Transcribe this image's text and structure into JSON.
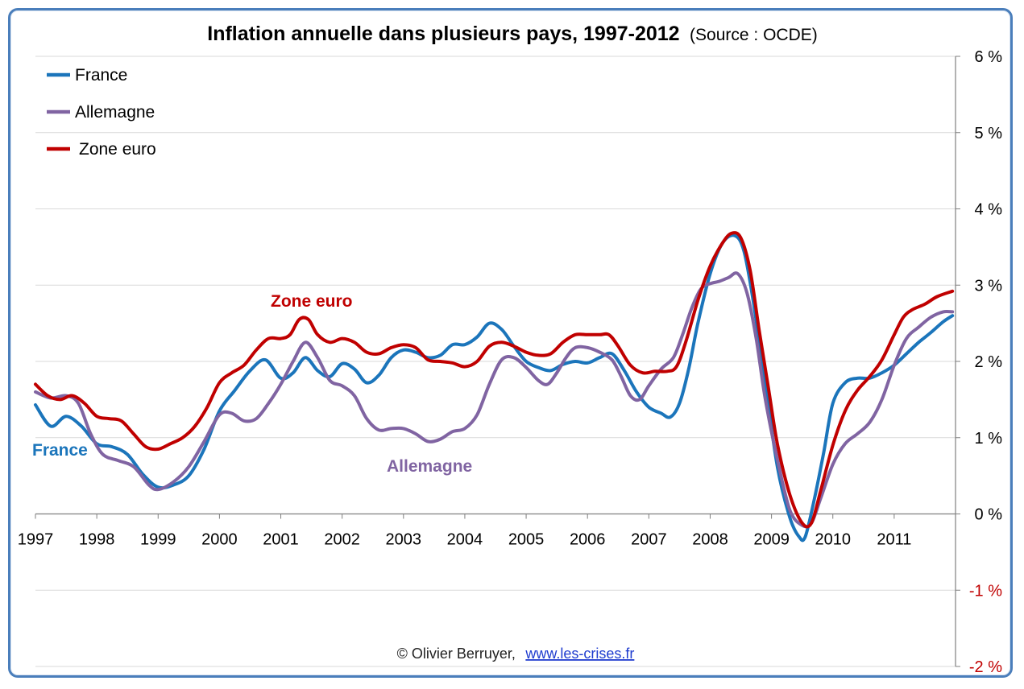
{
  "chart_data": {
    "type": "line",
    "title": "Inflation annuelle dans plusieurs pays, 1997-2012",
    "subtitle": "(Source : OCDE)",
    "xlabel": "",
    "ylabel": "",
    "x_ticks": [
      "1997",
      "1998",
      "1999",
      "2000",
      "2001",
      "2002",
      "2003",
      "2004",
      "2005",
      "2006",
      "2007",
      "2008",
      "2009",
      "2010",
      "2011"
    ],
    "y_ticks": [
      {
        "value": 6,
        "label": "6 %"
      },
      {
        "value": 5,
        "label": "5 %"
      },
      {
        "value": 4,
        "label": "4 %"
      },
      {
        "value": 3,
        "label": "3 %"
      },
      {
        "value": 2,
        "label": "2 %"
      },
      {
        "value": 1,
        "label": "1 %"
      },
      {
        "value": 0,
        "label": "0 %"
      },
      {
        "value": -1,
        "label": "-1 %"
      },
      {
        "value": -2,
        "label": "-2 %"
      }
    ],
    "xlim": [
      1997,
      2012
    ],
    "ylim": [
      -2,
      6
    ],
    "grid": true,
    "legend_position": "top-left",
    "series": [
      {
        "name": "France",
        "color": "#1f77b4",
        "stroke": "#1b75bb",
        "annotation": "France",
        "points": [
          [
            1997.0,
            1.43
          ],
          [
            1997.25,
            1.15
          ],
          [
            1997.5,
            1.28
          ],
          [
            1997.75,
            1.15
          ],
          [
            1998.0,
            0.92
          ],
          [
            1998.25,
            0.88
          ],
          [
            1998.5,
            0.78
          ],
          [
            1998.75,
            0.52
          ],
          [
            1999.0,
            0.35
          ],
          [
            1999.25,
            0.38
          ],
          [
            1999.5,
            0.5
          ],
          [
            1999.75,
            0.85
          ],
          [
            2000.0,
            1.35
          ],
          [
            2000.25,
            1.62
          ],
          [
            2000.5,
            1.88
          ],
          [
            2000.75,
            2.02
          ],
          [
            2001.0,
            1.78
          ],
          [
            2001.2,
            1.85
          ],
          [
            2001.4,
            2.05
          ],
          [
            2001.6,
            1.88
          ],
          [
            2001.8,
            1.8
          ],
          [
            2002.0,
            1.97
          ],
          [
            2002.2,
            1.9
          ],
          [
            2002.4,
            1.72
          ],
          [
            2002.6,
            1.82
          ],
          [
            2002.8,
            2.05
          ],
          [
            2003.0,
            2.15
          ],
          [
            2003.2,
            2.12
          ],
          [
            2003.4,
            2.05
          ],
          [
            2003.6,
            2.08
          ],
          [
            2003.8,
            2.22
          ],
          [
            2004.0,
            2.22
          ],
          [
            2004.2,
            2.32
          ],
          [
            2004.4,
            2.5
          ],
          [
            2004.6,
            2.42
          ],
          [
            2004.8,
            2.2
          ],
          [
            2005.0,
            2.0
          ],
          [
            2005.2,
            1.92
          ],
          [
            2005.4,
            1.88
          ],
          [
            2005.6,
            1.96
          ],
          [
            2005.8,
            2.0
          ],
          [
            2006.0,
            1.98
          ],
          [
            2006.2,
            2.05
          ],
          [
            2006.4,
            2.1
          ],
          [
            2006.6,
            1.88
          ],
          [
            2006.8,
            1.6
          ],
          [
            2007.0,
            1.4
          ],
          [
            2007.2,
            1.32
          ],
          [
            2007.35,
            1.27
          ],
          [
            2007.5,
            1.45
          ],
          [
            2007.65,
            1.9
          ],
          [
            2007.8,
            2.5
          ],
          [
            2008.0,
            3.15
          ],
          [
            2008.2,
            3.55
          ],
          [
            2008.4,
            3.65
          ],
          [
            2008.55,
            3.45
          ],
          [
            2008.7,
            2.8
          ],
          [
            2008.9,
            1.7
          ],
          [
            2009.1,
            0.6
          ],
          [
            2009.3,
            -0.05
          ],
          [
            2009.45,
            -0.3
          ],
          [
            2009.55,
            -0.3
          ],
          [
            2009.7,
            0.2
          ],
          [
            2009.85,
            0.8
          ],
          [
            2010.0,
            1.45
          ],
          [
            2010.2,
            1.72
          ],
          [
            2010.4,
            1.78
          ],
          [
            2010.6,
            1.78
          ],
          [
            2010.8,
            1.85
          ],
          [
            2011.0,
            1.95
          ],
          [
            2011.2,
            2.1
          ],
          [
            2011.4,
            2.25
          ],
          [
            2011.6,
            2.38
          ],
          [
            2011.8,
            2.52
          ],
          [
            2011.95,
            2.6
          ]
        ]
      },
      {
        "name": "Allemagne",
        "color": "#8064a2",
        "stroke": "#8064a2",
        "annotation": "Allemagne",
        "points": [
          [
            1997.0,
            1.6
          ],
          [
            1997.25,
            1.52
          ],
          [
            1997.5,
            1.55
          ],
          [
            1997.7,
            1.45
          ],
          [
            1997.9,
            1.05
          ],
          [
            1998.1,
            0.78
          ],
          [
            1998.35,
            0.7
          ],
          [
            1998.6,
            0.62
          ],
          [
            1998.85,
            0.38
          ],
          [
            1999.0,
            0.32
          ],
          [
            1999.25,
            0.42
          ],
          [
            1999.5,
            0.62
          ],
          [
            1999.75,
            0.95
          ],
          [
            2000.0,
            1.3
          ],
          [
            2000.2,
            1.32
          ],
          [
            2000.4,
            1.22
          ],
          [
            2000.6,
            1.25
          ],
          [
            2000.8,
            1.45
          ],
          [
            2001.0,
            1.7
          ],
          [
            2001.2,
            2.0
          ],
          [
            2001.4,
            2.25
          ],
          [
            2001.6,
            2.05
          ],
          [
            2001.8,
            1.75
          ],
          [
            2002.0,
            1.68
          ],
          [
            2002.2,
            1.55
          ],
          [
            2002.4,
            1.25
          ],
          [
            2002.6,
            1.1
          ],
          [
            2002.8,
            1.12
          ],
          [
            2003.0,
            1.12
          ],
          [
            2003.2,
            1.05
          ],
          [
            2003.4,
            0.95
          ],
          [
            2003.6,
            0.98
          ],
          [
            2003.8,
            1.08
          ],
          [
            2004.0,
            1.12
          ],
          [
            2004.2,
            1.3
          ],
          [
            2004.4,
            1.7
          ],
          [
            2004.6,
            2.02
          ],
          [
            2004.8,
            2.05
          ],
          [
            2005.0,
            1.92
          ],
          [
            2005.2,
            1.75
          ],
          [
            2005.35,
            1.7
          ],
          [
            2005.5,
            1.85
          ],
          [
            2005.65,
            2.05
          ],
          [
            2005.8,
            2.18
          ],
          [
            2006.0,
            2.18
          ],
          [
            2006.2,
            2.12
          ],
          [
            2006.4,
            2.02
          ],
          [
            2006.55,
            1.8
          ],
          [
            2006.7,
            1.55
          ],
          [
            2006.85,
            1.5
          ],
          [
            2007.0,
            1.68
          ],
          [
            2007.2,
            1.9
          ],
          [
            2007.4,
            2.05
          ],
          [
            2007.55,
            2.35
          ],
          [
            2007.7,
            2.7
          ],
          [
            2007.85,
            2.95
          ],
          [
            2008.0,
            3.02
          ],
          [
            2008.15,
            3.05
          ],
          [
            2008.3,
            3.1
          ],
          [
            2008.45,
            3.15
          ],
          [
            2008.6,
            2.9
          ],
          [
            2008.75,
            2.3
          ],
          [
            2008.9,
            1.5
          ],
          [
            2009.1,
            0.7
          ],
          [
            2009.3,
            0.05
          ],
          [
            2009.5,
            -0.15
          ],
          [
            2009.65,
            -0.12
          ],
          [
            2009.8,
            0.2
          ],
          [
            2010.0,
            0.65
          ],
          [
            2010.2,
            0.92
          ],
          [
            2010.4,
            1.05
          ],
          [
            2010.6,
            1.2
          ],
          [
            2010.8,
            1.5
          ],
          [
            2011.0,
            1.95
          ],
          [
            2011.2,
            2.3
          ],
          [
            2011.4,
            2.45
          ],
          [
            2011.6,
            2.58
          ],
          [
            2011.8,
            2.65
          ],
          [
            2011.95,
            2.65
          ]
        ]
      },
      {
        "name": "Zone euro",
        "color": "#c00000",
        "stroke": "#c00000",
        "annotation": "Zone euro",
        "points": [
          [
            1997.0,
            1.7
          ],
          [
            1997.2,
            1.55
          ],
          [
            1997.4,
            1.5
          ],
          [
            1997.6,
            1.55
          ],
          [
            1997.8,
            1.45
          ],
          [
            1998.0,
            1.28
          ],
          [
            1998.2,
            1.25
          ],
          [
            1998.4,
            1.22
          ],
          [
            1998.6,
            1.05
          ],
          [
            1998.8,
            0.88
          ],
          [
            1999.0,
            0.85
          ],
          [
            1999.2,
            0.92
          ],
          [
            1999.4,
            1.0
          ],
          [
            1999.6,
            1.15
          ],
          [
            1999.8,
            1.4
          ],
          [
            2000.0,
            1.72
          ],
          [
            2000.2,
            1.85
          ],
          [
            2000.4,
            1.95
          ],
          [
            2000.6,
            2.15
          ],
          [
            2000.8,
            2.3
          ],
          [
            2001.0,
            2.3
          ],
          [
            2001.15,
            2.35
          ],
          [
            2001.3,
            2.55
          ],
          [
            2001.45,
            2.55
          ],
          [
            2001.6,
            2.35
          ],
          [
            2001.8,
            2.25
          ],
          [
            2002.0,
            2.3
          ],
          [
            2002.2,
            2.25
          ],
          [
            2002.4,
            2.12
          ],
          [
            2002.6,
            2.1
          ],
          [
            2002.8,
            2.18
          ],
          [
            2003.0,
            2.22
          ],
          [
            2003.2,
            2.18
          ],
          [
            2003.4,
            2.02
          ],
          [
            2003.6,
            2.0
          ],
          [
            2003.8,
            1.98
          ],
          [
            2004.0,
            1.93
          ],
          [
            2004.2,
            2.0
          ],
          [
            2004.4,
            2.2
          ],
          [
            2004.6,
            2.25
          ],
          [
            2004.8,
            2.2
          ],
          [
            2005.0,
            2.12
          ],
          [
            2005.2,
            2.08
          ],
          [
            2005.4,
            2.1
          ],
          [
            2005.6,
            2.25
          ],
          [
            2005.8,
            2.35
          ],
          [
            2006.0,
            2.35
          ],
          [
            2006.2,
            2.35
          ],
          [
            2006.35,
            2.35
          ],
          [
            2006.5,
            2.2
          ],
          [
            2006.7,
            1.95
          ],
          [
            2006.9,
            1.85
          ],
          [
            2007.1,
            1.87
          ],
          [
            2007.3,
            1.87
          ],
          [
            2007.45,
            1.93
          ],
          [
            2007.6,
            2.25
          ],
          [
            2007.8,
            2.8
          ],
          [
            2008.0,
            3.25
          ],
          [
            2008.2,
            3.55
          ],
          [
            2008.35,
            3.68
          ],
          [
            2008.5,
            3.62
          ],
          [
            2008.65,
            3.2
          ],
          [
            2008.8,
            2.4
          ],
          [
            2008.95,
            1.65
          ],
          [
            2009.1,
            0.9
          ],
          [
            2009.3,
            0.25
          ],
          [
            2009.5,
            -0.12
          ],
          [
            2009.65,
            -0.12
          ],
          [
            2009.8,
            0.3
          ],
          [
            2010.0,
            0.9
          ],
          [
            2010.2,
            1.35
          ],
          [
            2010.4,
            1.62
          ],
          [
            2010.6,
            1.8
          ],
          [
            2010.8,
            2.02
          ],
          [
            2011.0,
            2.35
          ],
          [
            2011.15,
            2.58
          ],
          [
            2011.3,
            2.68
          ],
          [
            2011.5,
            2.75
          ],
          [
            2011.7,
            2.85
          ],
          [
            2011.95,
            2.92
          ]
        ]
      }
    ]
  },
  "credit": {
    "author": "© Olivier Berruyer,",
    "link": "www.les-crises.fr"
  }
}
